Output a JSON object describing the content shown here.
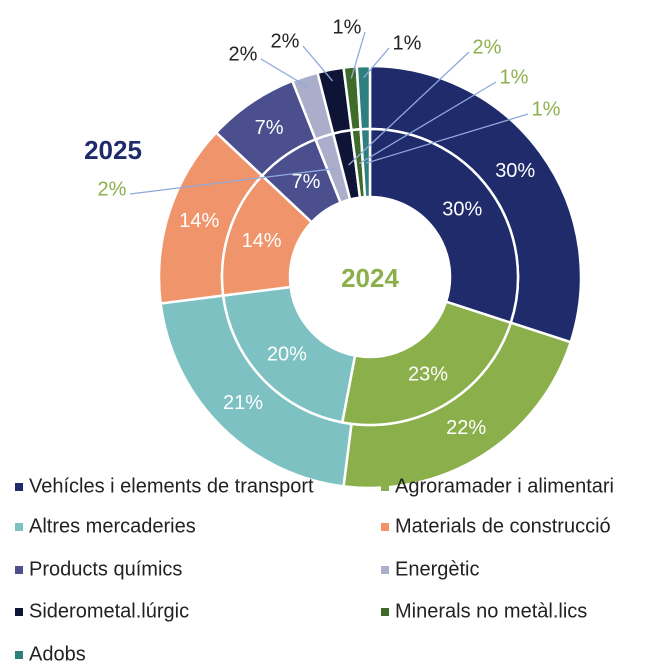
{
  "chart_data": {
    "type": "donut",
    "categories": [
      "Vehícles i elements de transport",
      "Agroramader i alimentari",
      "Altres mercaderies",
      "Materials de construcció",
      "Products químics",
      "Energètic",
      "Siderometal.lúrgic",
      "Minerals no metàl.lics",
      "Adobs"
    ],
    "colors": [
      "#1f2b6b",
      "#8bb04b",
      "#7ec1c3",
      "#f0956b",
      "#4b4f8e",
      "#aaaeca",
      "#0e1435",
      "#3e6a2a",
      "#2e7f80"
    ],
    "series": [
      {
        "name": "2025",
        "color": "#1f2b6b",
        "values": [
          30,
          22,
          21,
          14,
          7,
          2,
          2,
          1,
          1
        ],
        "value_labels": [
          "30%",
          "22%",
          "21%",
          "14%",
          "7%",
          "2%",
          "2%",
          "1%",
          "1%"
        ]
      },
      {
        "name": "2024",
        "color": "#8bb04b",
        "values": [
          30,
          23,
          20,
          14,
          7,
          2,
          2,
          1,
          1
        ],
        "value_labels": [
          "30%",
          "23%",
          "20%",
          "14%",
          "7%",
          "2%",
          "2%",
          "1%",
          "1%"
        ]
      }
    ],
    "legend": "bottom"
  }
}
